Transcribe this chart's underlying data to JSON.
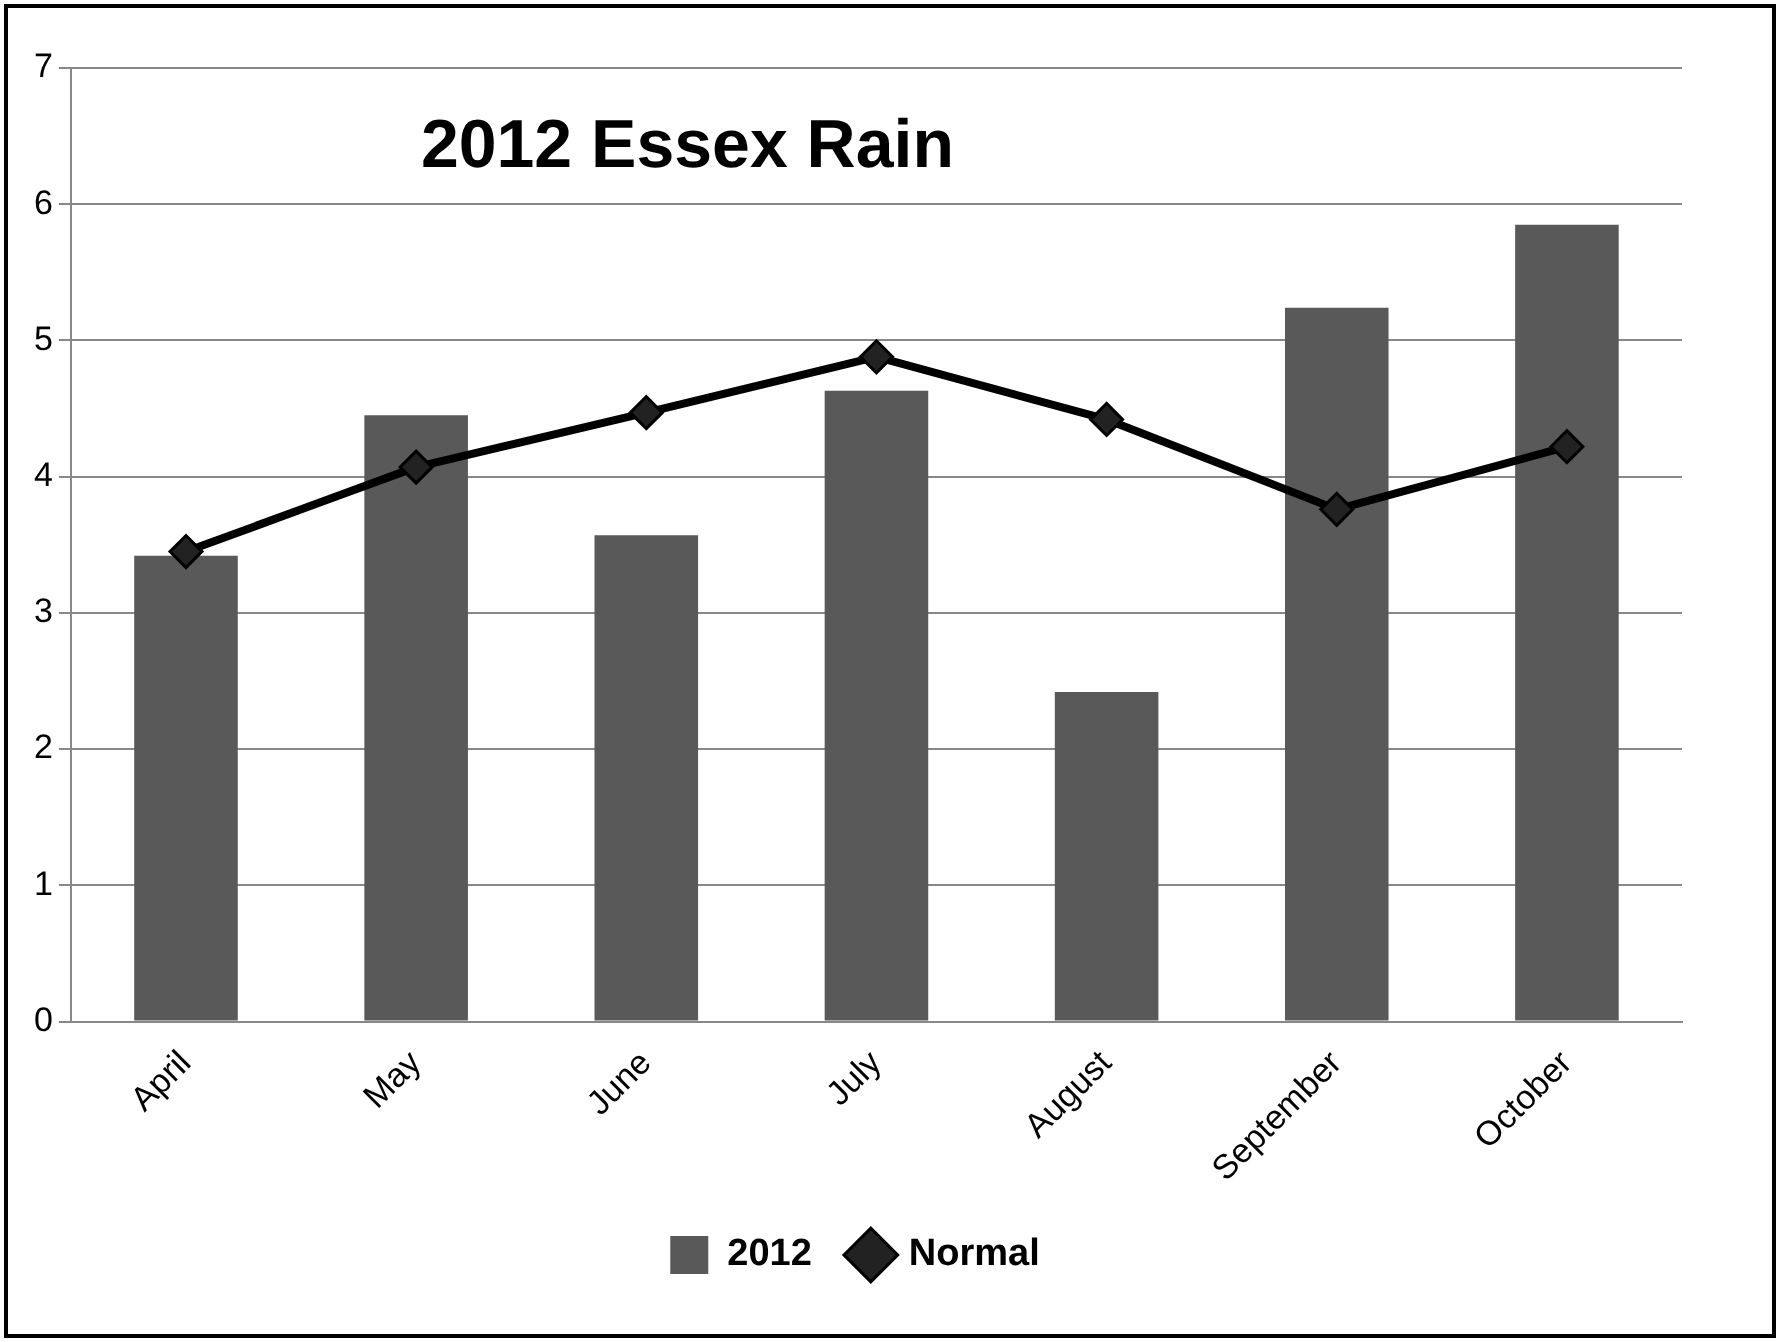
{
  "chart_data": {
    "type": "bar",
    "title": "2012 Essex Rain",
    "categories": [
      "April",
      "May",
      "June",
      "July",
      "August",
      "September",
      "October"
    ],
    "series": [
      {
        "name": "2012",
        "color": "#595959",
        "values": [
          3.42,
          4.45,
          3.57,
          4.63,
          2.42,
          5.24,
          5.85
        ]
      },
      {
        "name": "Normal",
        "type": "line",
        "color": "#000000",
        "values": [
          3.45,
          4.07,
          4.47,
          4.88,
          4.42,
          3.76,
          4.22
        ]
      }
    ],
    "ylim": [
      0,
      7
    ],
    "yticks": [
      0,
      1,
      2,
      3,
      4,
      5,
      6,
      7
    ],
    "grid": "y",
    "legend": "bottom",
    "marker": "diamond"
  }
}
